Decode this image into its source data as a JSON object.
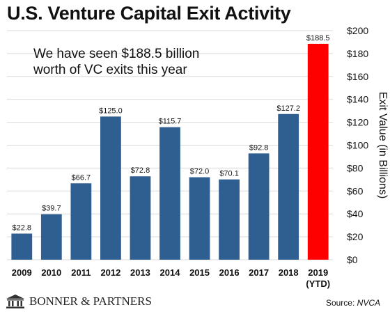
{
  "title": "U.S. Venture Capital Exit Activity",
  "annotation": {
    "line1": "We have seen $188.5 billion",
    "line2": "worth of VC exits this year"
  },
  "footer": {
    "brand": "BONNER & PARTNERS",
    "source_label": "Source: ",
    "source_name": "NVCA"
  },
  "colors": {
    "bar": "#2f5f91",
    "highlight": "#ff0000",
    "grid": "#d9d9d9"
  },
  "chart_data": {
    "type": "bar",
    "categories": [
      "2009",
      "2010",
      "2011",
      "2012",
      "2013",
      "2014",
      "2015",
      "2016",
      "2017",
      "2018",
      "2019"
    ],
    "category_sublabels": [
      "",
      "",
      "",
      "",
      "",
      "",
      "",
      "",
      "",
      "",
      "(YTD)"
    ],
    "values": [
      22.8,
      39.7,
      66.7,
      125.0,
      72.8,
      115.7,
      72.0,
      70.1,
      92.8,
      127.2,
      188.5
    ],
    "data_labels": [
      "$22.8",
      "$39.7",
      "$66.7",
      "$125.0",
      "$72.8",
      "$115.7",
      "$72.0",
      "$70.1",
      "$92.8",
      "$127.2",
      "$188.5"
    ],
    "highlight_index": 10,
    "ylabel": "Exit Value (in Billions)",
    "yaxis_position": "right",
    "ylim": [
      0,
      200
    ],
    "yticks": [
      0,
      20,
      40,
      60,
      80,
      100,
      120,
      140,
      160,
      180,
      200
    ],
    "ytick_labels": [
      "$0",
      "$20",
      "$40",
      "$60",
      "$80",
      "$100",
      "$120",
      "$140",
      "$160",
      "$180",
      "$200"
    ],
    "grid": true
  }
}
